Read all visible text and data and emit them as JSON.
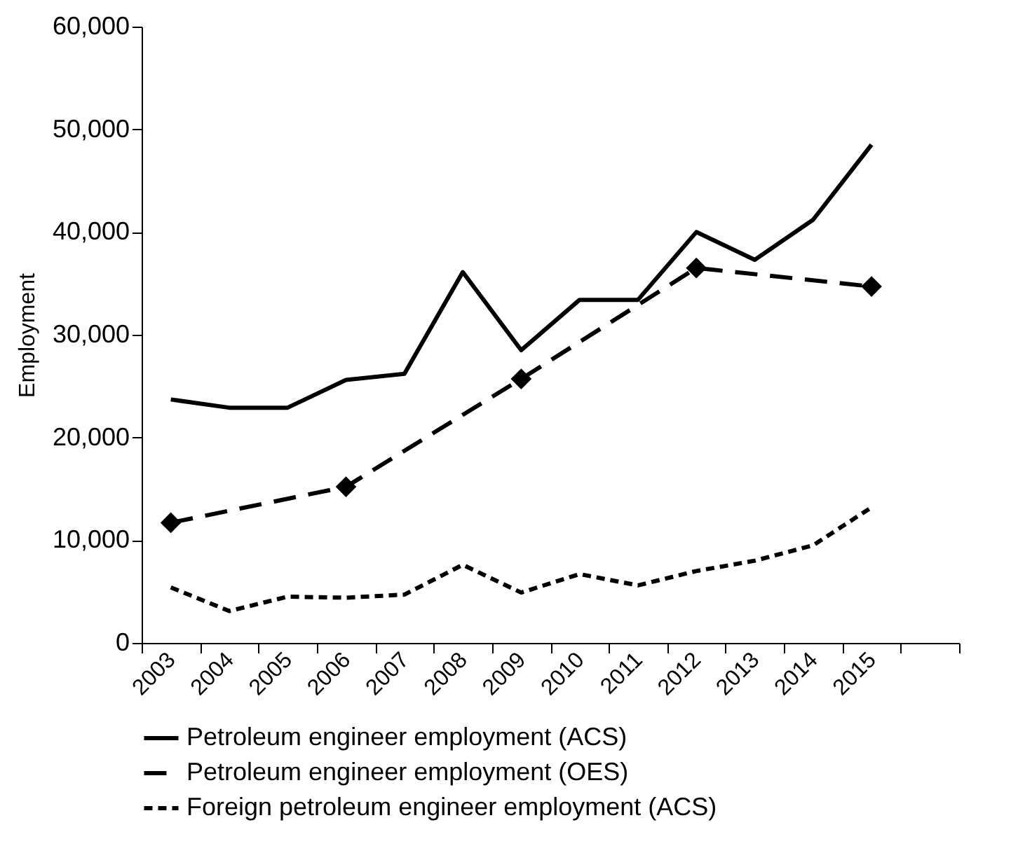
{
  "chart_data": {
    "type": "line",
    "ylabel": "Employment",
    "categories": [
      "2003",
      "2004",
      "2005",
      "2006",
      "2007",
      "2008",
      "2009",
      "2010",
      "2011",
      "2012",
      "2013",
      "2014",
      "2015",
      null
    ],
    "series": [
      {
        "name": "Petroleum engineer employment (ACS)",
        "color": "#000000",
        "line_style": "solid",
        "values": [
          23700,
          22900,
          22900,
          25600,
          26200,
          36100,
          28500,
          33400,
          33400,
          40000,
          37300,
          41200,
          48500,
          null
        ]
      },
      {
        "name": "Petroleum engineer employment (OES)",
        "color": "#000000",
        "line_style": "dashed",
        "marker": "diamond",
        "values": [
          11700,
          null,
          null,
          15200,
          null,
          null,
          25700,
          null,
          null,
          36500,
          null,
          null,
          34700,
          null
        ]
      },
      {
        "name": "Foreign petroleum engineer employment (ACS)",
        "color": "#000000",
        "line_style": "dotted",
        "values": [
          5400,
          3100,
          4500,
          4400,
          4700,
          7600,
          4900,
          6700,
          5600,
          7000,
          8000,
          9500,
          13200,
          null
        ]
      }
    ],
    "ylim": [
      0,
      60000
    ],
    "yticks": [
      {
        "value": 0,
        "label": "0"
      },
      {
        "value": 10000,
        "label": "10,000"
      },
      {
        "value": 20000,
        "label": "20,000"
      },
      {
        "value": 30000,
        "label": "30,000"
      },
      {
        "value": 40000,
        "label": "40,000"
      },
      {
        "value": 50000,
        "label": "50,000"
      },
      {
        "value": 60000,
        "label": "60,000"
      }
    ],
    "grid": false,
    "legend": "bottom"
  }
}
